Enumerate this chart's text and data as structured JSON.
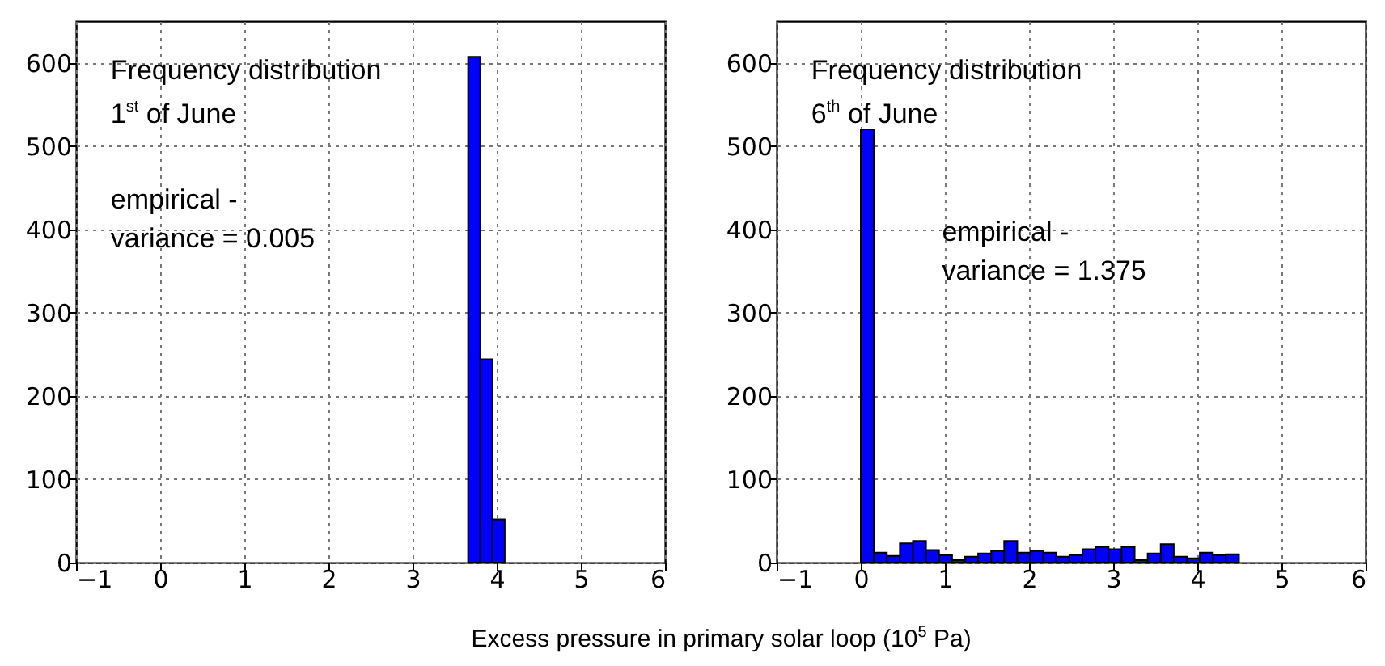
{
  "chart_data": [
    {
      "type": "histogram",
      "xlabel": "Excess pressure in primary solar loop (10$^{5}$ Pa)",
      "annotations": [
        "Frequency distribution",
        "1$^{st}$ of June",
        "empirical -",
        "variance = 0.005"
      ],
      "bins": [
        3.66,
        3.805,
        3.95,
        4.095
      ],
      "values": [
        607,
        244,
        52
      ],
      "color": "#0000ff",
      "xlim": [
        -1,
        6
      ],
      "xticks": [
        -1,
        0,
        1,
        2,
        3,
        4,
        5,
        6
      ],
      "ylim": [
        0,
        650
      ],
      "yticks": [
        0,
        100,
        200,
        300,
        400,
        500,
        600
      ],
      "grid": true
    },
    {
      "type": "histogram",
      "annotations": [
        "Frequency distribution",
        "6$^{th}$ of June",
        "empirical -",
        "variance = 1.375"
      ],
      "bins": [
        0,
        0.155,
        0.31,
        0.465,
        0.62,
        0.775,
        0.93,
        1.085,
        1.24,
        1.395,
        1.55,
        1.705,
        1.86,
        2.015,
        2.17,
        2.325,
        2.48,
        2.635,
        2.79,
        2.945,
        3.1,
        3.255,
        3.41,
        3.565,
        3.72,
        3.875,
        4.03,
        4.185,
        4.34,
        4.495
      ],
      "values": [
        520,
        12,
        8,
        23,
        26,
        15,
        9,
        3,
        7,
        11,
        14,
        26,
        12,
        14,
        12,
        7,
        9,
        16,
        19,
        16,
        19,
        3,
        11,
        22,
        7,
        5,
        12,
        9,
        10
      ],
      "color": "#0000ff",
      "xlim": [
        -1,
        6
      ],
      "xticks": [
        -1,
        0,
        1,
        2,
        3,
        4,
        5,
        6
      ],
      "ylim": [
        0,
        650
      ],
      "yticks": [
        0,
        100,
        200,
        300,
        400,
        500,
        600
      ],
      "grid": true
    }
  ]
}
